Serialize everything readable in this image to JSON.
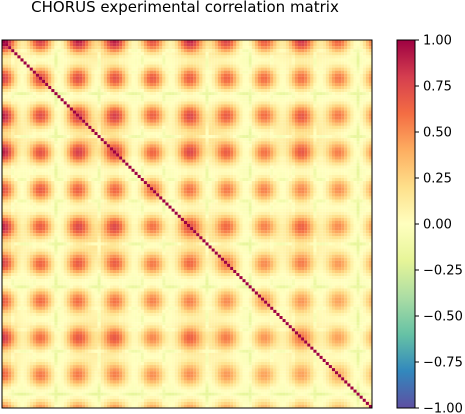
{
  "chart_data": {
    "type": "heatmap",
    "title": "CHORUS experimental correlation matrix",
    "xlabel": "",
    "ylabel": "",
    "colormap": "Spectral_r",
    "colorbar": {
      "range": [
        -1.0,
        1.0
      ],
      "ticks": [
        1.0,
        0.75,
        0.5,
        0.25,
        0.0,
        -0.25,
        -0.5,
        -0.75,
        -1.0
      ],
      "tick_labels": [
        "1.00",
        "0.75",
        "0.50",
        "0.25",
        "0.00",
        "−0.25",
        "−0.50",
        "−0.75",
        "−1.00"
      ],
      "stops": [
        "#5e4fa2",
        "#3288bd",
        "#66c2a5",
        "#abdda4",
        "#e6f598",
        "#ffffbf",
        "#fee08b",
        "#fdae61",
        "#f46d43",
        "#d53e4f",
        "#9e0142"
      ]
    },
    "matrix": {
      "size": 120,
      "diagonal_value": 1.0,
      "description_of_pattern": "block-periodic positive correlations strongest near top-left, fading toward bottom-right"
    }
  }
}
